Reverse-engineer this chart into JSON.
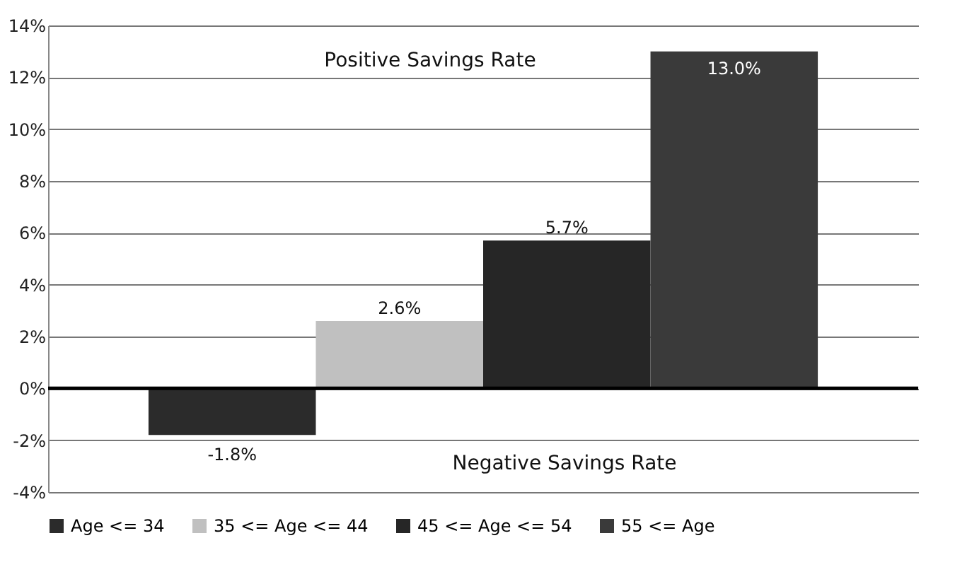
{
  "chart_data": {
    "type": "bar",
    "categories": [
      null,
      null,
      null,
      null
    ],
    "series": [
      {
        "name": "Age <= 34",
        "color": "#2b2b2b",
        "values": [
          -1.8,
          null,
          null,
          null
        ],
        "value_labels": [
          "-1.8%",
          null,
          null,
          null
        ]
      },
      {
        "name": "35 <= Age <= 44",
        "color": "#c0c0c0",
        "values": [
          null,
          2.6,
          null,
          null
        ],
        "value_labels": [
          null,
          "2.6%",
          null,
          null
        ]
      },
      {
        "name": "45 <= Age <= 54",
        "color": "#262626",
        "values": [
          null,
          null,
          5.7,
          null
        ],
        "value_labels": [
          null,
          null,
          "5.7%",
          null
        ]
      },
      {
        "name": "55 <= Age",
        "color": "#3a3a3a",
        "values": [
          null,
          null,
          null,
          13.0
        ],
        "value_labels": [
          null,
          null,
          null,
          "13.0%"
        ]
      }
    ],
    "ylim": [
      -4,
      14
    ],
    "yticks": [
      {
        "value": -4,
        "label": "-4%"
      },
      {
        "value": -2,
        "label": "-2%"
      },
      {
        "value": 0,
        "label": "0%"
      },
      {
        "value": 2,
        "label": "2%"
      },
      {
        "value": 4,
        "label": "4%"
      },
      {
        "value": 6,
        "label": "6%"
      },
      {
        "value": 8,
        "label": "8%"
      },
      {
        "value": 10,
        "label": "10%"
      },
      {
        "value": 12,
        "label": "12%"
      },
      {
        "value": 14,
        "label": "14%"
      }
    ],
    "ref_lines": [
      {
        "axis": "y",
        "value": 0,
        "color": "#000000"
      }
    ],
    "annotations": [
      "Positive Savings Rate",
      "Negative Savings Rate"
    ],
    "grid": "y",
    "legend": "bottom"
  }
}
